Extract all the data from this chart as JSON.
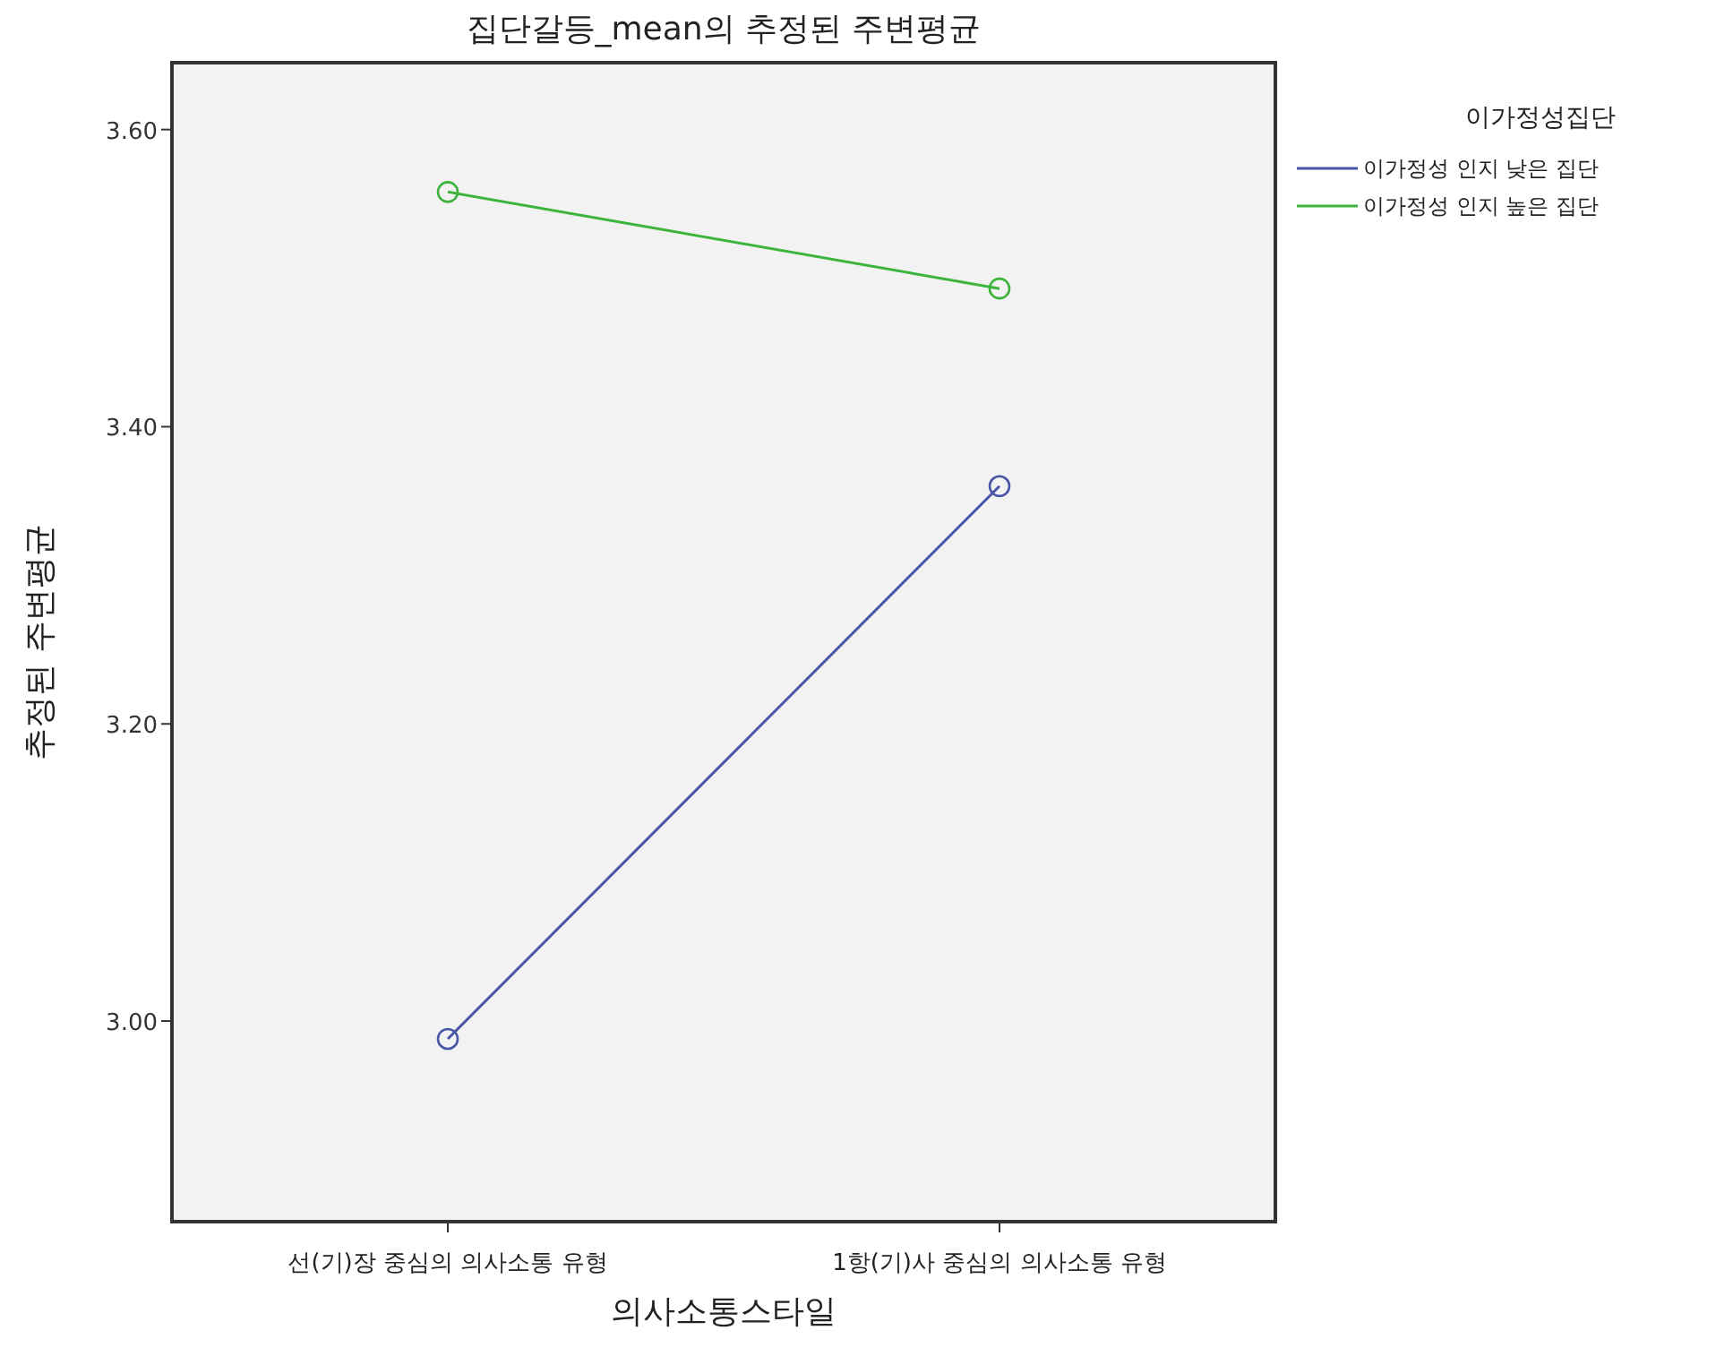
{
  "chart_data": {
    "type": "line",
    "title": "집단갈등_mean의 추정된 주변평균",
    "xlabel": "의사소통스타일",
    "ylabel": "추정된 주변평균",
    "legend_title": "이가정성집단",
    "categories": [
      "선(기)장 중심의 의사소통 유형",
      "1항(기)사 중심의 의사소통 유형"
    ],
    "series": [
      {
        "name": "이가정성 인지 낮은 집단",
        "color": "#4a55a8",
        "values": [
          2.988,
          3.36
        ]
      },
      {
        "name": "이가정성 인지 높은 집단",
        "color": "#3cb43c",
        "values": [
          3.558,
          3.493
        ]
      }
    ],
    "ylim": [
      2.865,
      3.645
    ],
    "yticks": [
      {
        "value": 3.0,
        "label": "3.00"
      },
      {
        "value": 3.2,
        "label": "3.20"
      },
      {
        "value": 3.4,
        "label": "3.40"
      },
      {
        "value": 3.6,
        "label": "3.60"
      }
    ],
    "marker": "circle",
    "legend": "top right",
    "grid": false
  }
}
